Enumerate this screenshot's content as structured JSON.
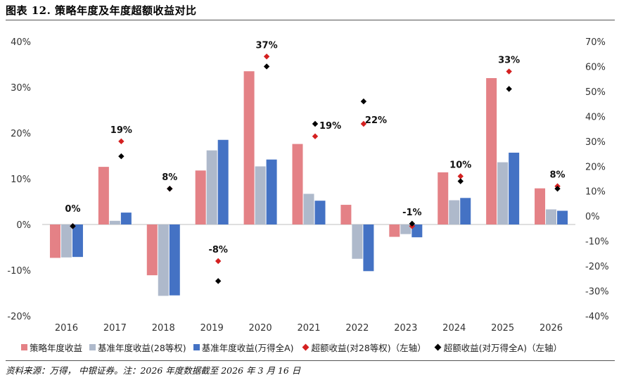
{
  "title": "图表 12. 策略年度及年度超额收益对比",
  "source": "资料来源：万得， 中银证券。注：2026 年度数据截至 2026 年 3 月 16 日",
  "chart_data": {
    "type": "bar",
    "categories": [
      "2016",
      "2017",
      "2018",
      "2019",
      "2020",
      "2021",
      "2022",
      "2023",
      "2024",
      "2025",
      "2026"
    ],
    "left_axis": {
      "ylim": [
        -20,
        40
      ],
      "ticks": [
        "-20%",
        "-10%",
        "0%",
        "10%",
        "20%",
        "30%",
        "40%"
      ]
    },
    "right_axis": {
      "ylim": [
        -40,
        70
      ],
      "ticks": [
        "-40%",
        "-30%",
        "-20%",
        "-10%",
        "0%",
        "10%",
        "20%",
        "30%",
        "40%",
        "50%",
        "60%",
        "70%"
      ]
    },
    "series": [
      {
        "name": "策略年度收益",
        "kind": "bar",
        "axis": "left",
        "color": "#e48186",
        "values": [
          -7.3,
          12.6,
          -11.1,
          11.8,
          33.5,
          17.6,
          4.3,
          -2.7,
          11.4,
          32.0,
          7.9
        ]
      },
      {
        "name": "基准年度收益(28等权)",
        "kind": "bar",
        "axis": "left",
        "color": "#aeb9cb",
        "values": [
          -7.2,
          0.8,
          -15.6,
          16.2,
          12.7,
          6.7,
          -7.5,
          -2.1,
          5.3,
          13.6,
          3.3
        ]
      },
      {
        "name": "基准年度收益(万得全A)",
        "kind": "bar",
        "axis": "left",
        "color": "#4472c4",
        "values": [
          -7.1,
          2.6,
          -15.5,
          18.5,
          14.2,
          5.2,
          -10.2,
          -2.8,
          5.8,
          15.7,
          3.0
        ]
      },
      {
        "name": "超额收益(对28等权)（左轴）",
        "kind": "scatter",
        "axis": "right",
        "color": "#d42020",
        "values": [
          -4,
          30,
          11,
          -18,
          64,
          32,
          37,
          -4,
          16,
          58,
          12
        ]
      },
      {
        "name": "超额收益(对万得全A)（左轴）",
        "kind": "scatter",
        "axis": "right",
        "color": "#000000",
        "values": [
          -4,
          24,
          11,
          -26,
          60,
          37,
          46,
          -3,
          14,
          51,
          11
        ]
      }
    ],
    "data_labels": [
      "0%",
      "19%",
      "8%",
      "-8%",
      "37%",
      "19%",
      "22%",
      "-1%",
      "10%",
      "33%",
      "8%"
    ],
    "grid": false,
    "legend": "bottom"
  }
}
